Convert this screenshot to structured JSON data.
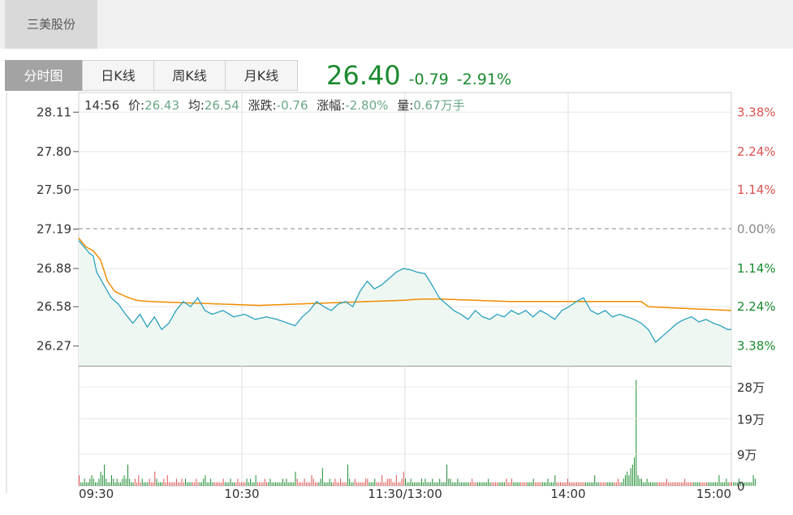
{
  "stock_name": "三美股份",
  "tabs": [
    {
      "label": "分时图",
      "active": true
    },
    {
      "label": "日K线",
      "active": false
    },
    {
      "label": "周K线",
      "active": false
    },
    {
      "label": "月K线",
      "active": false
    }
  ],
  "quote": {
    "price": "26.40",
    "change": "-0.79",
    "change_pct": "-2.91%"
  },
  "info": {
    "time": "14:56",
    "price_label": "价:",
    "price": "26.43",
    "avg_label": "均:",
    "avg": "26.54",
    "chg_label": "涨跌:",
    "chg": "-0.76",
    "pct_label": "涨幅:",
    "pct": "-2.80%",
    "vol_label": "量:",
    "vol": "0.67万手"
  },
  "colors": {
    "price_line": "#2aa0c0",
    "avg_line": "#f08c00",
    "up": "#d9534f",
    "down": "#1a8a2e",
    "area": "#eef7f1"
  },
  "chart_data": {
    "type": "line",
    "prev_close": 27.19,
    "ylim": [
      26.115,
      28.265
    ],
    "y_ticks": [
      "28.11",
      "27.80",
      "27.50",
      "27.19",
      "26.88",
      "26.58",
      "26.27"
    ],
    "pct_ticks": [
      "3.38%",
      "2.24%",
      "1.14%",
      "0.00%",
      "1.14%",
      "2.24%",
      "3.38%"
    ],
    "x_ticks": [
      "09:30",
      "10:30",
      "11:30/13:00",
      "14:00",
      "15:00"
    ],
    "volume_ticks": [
      "28万",
      "19万",
      "9万",
      "0"
    ],
    "volume_ylim_wan": [
      0,
      34
    ],
    "price_keypoints": [
      [
        0,
        27.1
      ],
      [
        3,
        27.05
      ],
      [
        6,
        27.0
      ],
      [
        8,
        26.98
      ],
      [
        10,
        26.85
      ],
      [
        14,
        26.75
      ],
      [
        18,
        26.65
      ],
      [
        22,
        26.6
      ],
      [
        26,
        26.52
      ],
      [
        30,
        26.45
      ],
      [
        34,
        26.52
      ],
      [
        38,
        26.42
      ],
      [
        42,
        26.5
      ],
      [
        46,
        26.4
      ],
      [
        50,
        26.45
      ],
      [
        54,
        26.55
      ],
      [
        58,
        26.62
      ],
      [
        62,
        26.58
      ],
      [
        66,
        26.65
      ],
      [
        70,
        26.55
      ],
      [
        74,
        26.52
      ],
      [
        80,
        26.55
      ],
      [
        86,
        26.5
      ],
      [
        92,
        26.52
      ],
      [
        98,
        26.48
      ],
      [
        104,
        26.5
      ],
      [
        110,
        26.48
      ],
      [
        116,
        26.45
      ],
      [
        120,
        26.43
      ],
      [
        124,
        26.5
      ],
      [
        128,
        26.55
      ],
      [
        132,
        26.62
      ],
      [
        136,
        26.58
      ],
      [
        140,
        26.55
      ],
      [
        144,
        26.6
      ],
      [
        148,
        26.62
      ],
      [
        152,
        26.58
      ],
      [
        156,
        26.7
      ],
      [
        160,
        26.78
      ],
      [
        164,
        26.72
      ],
      [
        168,
        26.75
      ],
      [
        172,
        26.8
      ],
      [
        176,
        26.85
      ],
      [
        180,
        26.88
      ],
      [
        184,
        26.87
      ],
      [
        188,
        26.85
      ],
      [
        192,
        26.84
      ],
      [
        196,
        26.75
      ],
      [
        200,
        26.65
      ],
      [
        204,
        26.6
      ],
      [
        208,
        26.55
      ],
      [
        212,
        26.52
      ],
      [
        216,
        26.48
      ],
      [
        220,
        26.55
      ],
      [
        224,
        26.5
      ],
      [
        228,
        26.48
      ],
      [
        232,
        26.52
      ],
      [
        236,
        26.5
      ],
      [
        240,
        26.55
      ],
      [
        244,
        26.52
      ],
      [
        248,
        26.55
      ],
      [
        252,
        26.5
      ],
      [
        256,
        26.55
      ],
      [
        260,
        26.52
      ],
      [
        264,
        26.48
      ],
      [
        268,
        26.55
      ],
      [
        272,
        26.58
      ],
      [
        276,
        26.62
      ],
      [
        280,
        26.65
      ],
      [
        284,
        26.55
      ],
      [
        288,
        26.52
      ],
      [
        292,
        26.55
      ],
      [
        296,
        26.5
      ],
      [
        300,
        26.52
      ],
      [
        304,
        26.5
      ],
      [
        308,
        26.48
      ],
      [
        312,
        26.45
      ],
      [
        316,
        26.4
      ],
      [
        320,
        26.3
      ],
      [
        324,
        26.35
      ],
      [
        328,
        26.4
      ],
      [
        332,
        26.45
      ],
      [
        336,
        26.48
      ],
      [
        340,
        26.5
      ],
      [
        344,
        26.46
      ],
      [
        348,
        26.48
      ],
      [
        352,
        26.45
      ],
      [
        356,
        26.43
      ],
      [
        360,
        26.4
      ],
      [
        362,
        26.4
      ]
    ],
    "avg_keypoints": [
      [
        0,
        27.12
      ],
      [
        4,
        27.05
      ],
      [
        8,
        27.02
      ],
      [
        12,
        26.95
      ],
      [
        16,
        26.78
      ],
      [
        20,
        26.7
      ],
      [
        26,
        26.66
      ],
      [
        32,
        26.63
      ],
      [
        40,
        26.62
      ],
      [
        60,
        26.61
      ],
      [
        80,
        26.6
      ],
      [
        100,
        26.59
      ],
      [
        120,
        26.6
      ],
      [
        140,
        26.61
      ],
      [
        160,
        26.62
      ],
      [
        180,
        26.63
      ],
      [
        190,
        26.64
      ],
      [
        200,
        26.64
      ],
      [
        220,
        26.63
      ],
      [
        240,
        26.62
      ],
      [
        260,
        26.62
      ],
      [
        280,
        26.62
      ],
      [
        300,
        26.62
      ],
      [
        312,
        26.62
      ],
      [
        316,
        26.58
      ],
      [
        330,
        26.57
      ],
      [
        362,
        26.55
      ]
    ],
    "volume_wan": [
      3,
      1,
      1,
      2,
      1,
      1,
      2,
      3,
      2,
      1,
      1,
      2,
      4,
      3,
      6,
      2,
      1,
      1,
      3,
      2,
      1,
      2,
      1,
      1,
      2,
      3,
      2,
      6,
      2,
      1,
      1,
      2,
      1,
      3,
      1,
      2,
      1,
      1,
      1,
      2,
      1,
      1,
      4,
      2,
      1,
      1,
      1,
      2,
      1,
      3,
      1,
      1,
      1,
      1,
      2,
      1,
      1,
      2,
      1,
      2,
      1,
      1,
      1,
      1,
      1,
      2,
      1,
      1,
      1,
      2,
      3,
      1,
      1,
      2,
      1,
      1,
      1,
      1,
      1,
      1,
      2,
      1,
      1,
      1,
      2,
      1,
      1,
      1,
      2,
      1,
      1,
      1,
      1,
      2,
      1,
      2,
      1,
      1,
      3,
      1,
      1,
      1,
      1,
      2,
      1,
      1,
      2,
      1,
      1,
      1,
      1,
      1,
      1,
      2,
      1,
      2,
      1,
      1,
      1,
      1,
      4,
      2,
      1,
      1,
      1,
      2,
      1,
      1,
      1,
      3,
      2,
      1,
      1,
      1,
      2,
      5,
      1,
      1,
      1,
      2,
      1,
      1,
      2,
      1,
      1,
      2,
      1,
      1,
      1,
      6,
      2,
      1,
      1,
      2,
      1,
      1,
      1,
      1,
      1,
      2,
      2,
      1,
      1,
      1,
      2,
      1,
      1,
      1,
      3,
      1,
      1,
      2,
      2,
      2,
      1,
      1,
      3,
      1,
      1,
      2,
      4,
      2,
      1,
      1,
      2,
      1,
      1,
      1,
      1,
      1,
      2,
      1,
      2,
      1,
      1,
      1,
      2,
      1,
      1,
      1,
      2,
      1,
      1,
      1,
      6,
      2,
      2,
      1,
      1,
      1,
      2,
      1,
      1,
      1,
      1,
      1,
      1,
      1,
      2,
      1,
      1,
      1,
      1,
      1,
      1,
      1,
      1,
      2,
      1,
      1,
      1,
      1,
      1,
      1,
      1,
      1,
      1,
      2,
      1,
      1,
      2,
      1,
      1,
      1,
      1,
      1,
      1,
      1,
      1,
      1,
      1,
      1,
      2,
      1,
      1,
      1,
      1,
      1,
      1,
      1,
      2,
      1,
      1,
      1,
      3,
      1,
      1,
      1,
      1,
      1,
      1,
      2,
      1,
      1,
      1,
      1,
      1,
      1,
      1,
      1,
      1,
      1,
      1,
      1,
      1,
      1,
      3,
      1,
      1,
      1,
      1,
      1,
      1,
      1,
      1,
      1,
      1,
      1,
      1,
      2,
      1,
      1,
      2,
      3,
      4,
      3,
      5,
      6,
      8,
      30,
      3,
      2,
      2,
      1,
      1,
      2,
      1,
      1,
      1,
      1,
      1,
      1,
      1,
      1,
      1,
      1,
      2,
      1,
      1,
      1,
      1,
      1,
      1,
      1,
      1,
      1,
      2,
      1,
      1,
      1,
      1,
      1,
      1,
      1,
      1,
      1,
      1,
      1,
      1,
      1,
      1,
      1,
      1,
      1,
      1,
      3,
      1,
      1,
      1,
      2,
      1,
      1,
      1,
      1,
      1,
      1,
      2,
      1,
      1,
      1,
      1,
      1,
      1,
      1,
      3,
      2
    ]
  }
}
